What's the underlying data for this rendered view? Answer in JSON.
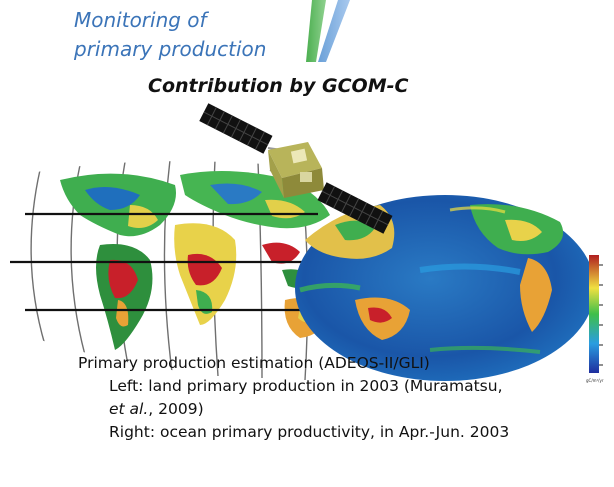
{
  "headline_line1": "Monitoring of",
  "headline_line2": "primary production",
  "subhead": "Contribution by GCOM-C",
  "colorbar_label": "gC/m²/yr",
  "colors": {
    "headline": "#3b74b8",
    "ocean": "#1d4fa0",
    "land_high": "#c8202a",
    "land_mid": "#2f8c3c",
    "land_low": "#e8d24a",
    "satellite_panel": "#111111",
    "satellite_body": "#b8b45a"
  },
  "caption": {
    "line1": "Primary production estimation (ADEOS-II/GLI)",
    "left_text": "Left: land primary production in 2003 (Muramatsu,",
    "left_authors": "et al.",
    "left_year": ", 2009)",
    "right_text": "Right: ocean primary productivity, in Apr.-Jun. 2003"
  }
}
